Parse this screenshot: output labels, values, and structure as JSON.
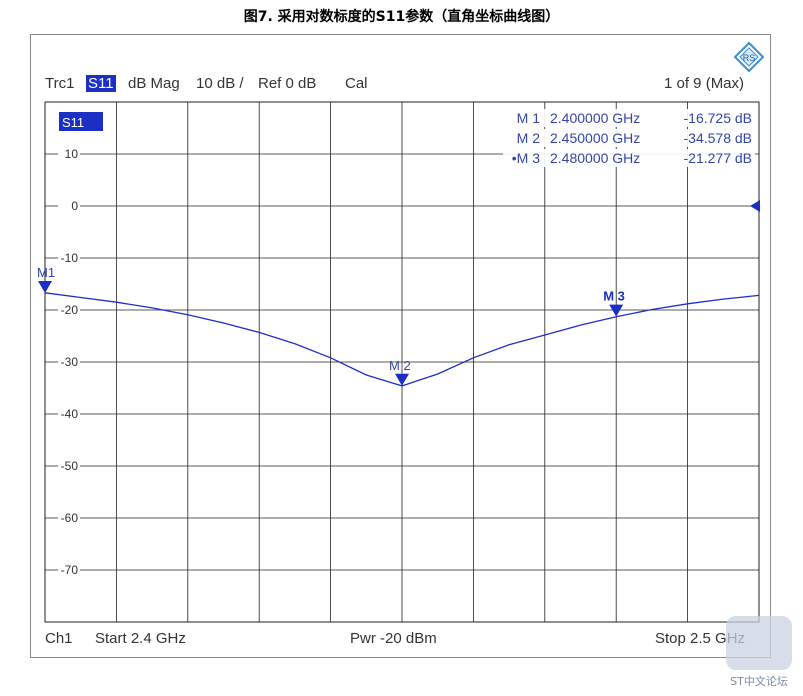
{
  "figure_title": "图7. 采用对数标度的S11参数（直角坐标曲线图）",
  "header": {
    "trace": "Trc1",
    "param": "S11",
    "format": "dB Mag",
    "scale": "10 dB /",
    "ref": "Ref 0 dB",
    "cal": "Cal",
    "page": "1 of 9 (Max)"
  },
  "trace_tag": "S11",
  "footer": {
    "channel": "Ch1",
    "start": "Start  2.4 GHz",
    "power": "Pwr  -20 dBm",
    "stop": "Stop  2.5 GHz"
  },
  "marker_table": [
    {
      "name": "M 1",
      "freq": "2.400000  GHz",
      "value": "-16.725  dB",
      "active": false
    },
    {
      "name": "M 2",
      "freq": "2.450000  GHz",
      "value": "-34.578  dB",
      "active": false
    },
    {
      "name": "M 3",
      "freq": "2.480000  GHz",
      "value": "-21.277  dB",
      "active": true
    }
  ],
  "watermark": "ST中文论坛",
  "colors": {
    "trace": "#1b2fc4",
    "grid": "#222222",
    "text": "#333333",
    "marker": "#1b2fc4"
  },
  "chart_data": {
    "type": "line",
    "xlim": [
      2.4,
      2.5
    ],
    "ylim": [
      -80,
      20
    ],
    "yticks": [
      10,
      0,
      -10,
      -20,
      -30,
      -40,
      -50,
      -60,
      -70
    ],
    "x_divisions": 10,
    "grid": true,
    "reference_level": 0,
    "series": [
      {
        "name": "S11",
        "x": [
          2.4,
          2.405,
          2.41,
          2.415,
          2.42,
          2.425,
          2.43,
          2.435,
          2.44,
          2.445,
          2.45,
          2.455,
          2.46,
          2.465,
          2.47,
          2.475,
          2.48,
          2.485,
          2.49,
          2.495,
          2.5
        ],
        "y": [
          -16.7,
          -17.6,
          -18.5,
          -19.6,
          -20.9,
          -22.5,
          -24.3,
          -26.5,
          -29.2,
          -32.5,
          -34.6,
          -32.3,
          -29.2,
          -26.7,
          -24.8,
          -22.9,
          -21.3,
          -19.9,
          -18.8,
          -17.9,
          -17.2
        ]
      }
    ],
    "markers": [
      {
        "label": "M1",
        "x": 2.4,
        "y": -16.725
      },
      {
        "label": "M 2",
        "x": 2.45,
        "y": -34.578
      },
      {
        "label": "M 3",
        "x": 2.48,
        "y": -21.277
      }
    ]
  }
}
